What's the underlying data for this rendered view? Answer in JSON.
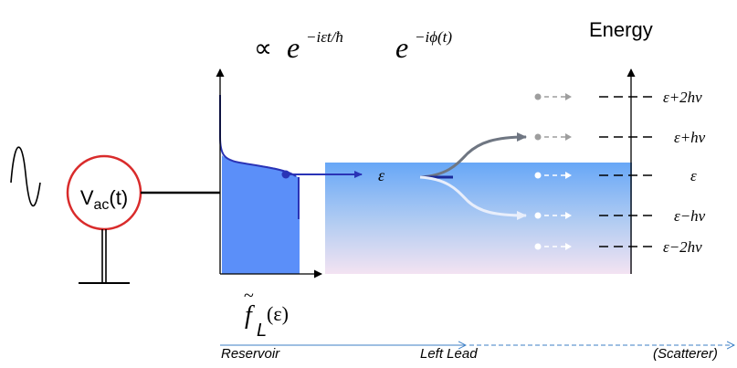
{
  "source": {
    "label_main": "V",
    "label_sub": "ac",
    "label_arg": "(t)"
  },
  "phase_factor": {
    "prop_symbol": "∝",
    "base": "e",
    "exp1": "−iεt/ħ",
    "exp2": "−iϕ(t)"
  },
  "energy_axis": {
    "title": "Energy",
    "levels": [
      {
        "label": "ε+2hv",
        "color": "#9e9e9e"
      },
      {
        "label": "ε+hv",
        "color": "#9e9e9e"
      },
      {
        "label": "ε",
        "color": "#ffffff"
      },
      {
        "label": "ε−hv",
        "color": "#ffffff"
      },
      {
        "label": "ε−2hv",
        "color": "#ffffff"
      }
    ]
  },
  "incoming_label": "ε",
  "distribution": {
    "tilde_f": "f",
    "sub": "L",
    "arg": "(ε)"
  },
  "regions": {
    "reservoir": "Reservoir",
    "lead": "Left Lead",
    "scatterer": "(Scatterer)"
  },
  "colors": {
    "fill_blue": "#5b8ff9",
    "arrow_blue": "#2a33b6",
    "source_ring": "#d92b2b",
    "gray": "#777777"
  }
}
